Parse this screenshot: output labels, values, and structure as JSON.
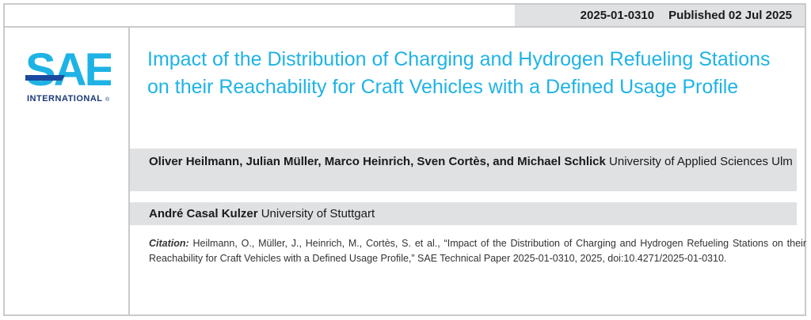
{
  "header": {
    "paper_number": "2025-01-0310",
    "published": "Published 02 Jul 2025"
  },
  "logo": {
    "wordmark": "SAE",
    "subtitle": "INTERNATIONAL",
    "registered": "®",
    "color": "#1fb3e5",
    "dark_color": "#1a4aa0"
  },
  "title": "Impact of the Distribution of Charging and Hydrogen Refueling Stations on their Reachability for Craft Vehicles with a Defined Usage Profile",
  "authors": [
    {
      "names": "Oliver Heilmann, Julian Müller, Marco Heinrich, Sven Cortès, and Michael Schlick",
      "affiliation": "University of Applied Sciences Ulm"
    },
    {
      "names": "André Casal Kulzer",
      "affiliation": "University of Stuttgart"
    }
  ],
  "citation": {
    "label": "Citation:",
    "text": "Heilmann, O., Müller, J., Heinrich, M., Cortès, S. et al., “Impact of the Distribution of Charging and Hydrogen Refueling Stations on their Reachability for Craft Vehicles with a Defined Usage Profile,” SAE Technical Paper 2025-01-0310, 2025, doi:10.4271/2025-01-0310."
  }
}
